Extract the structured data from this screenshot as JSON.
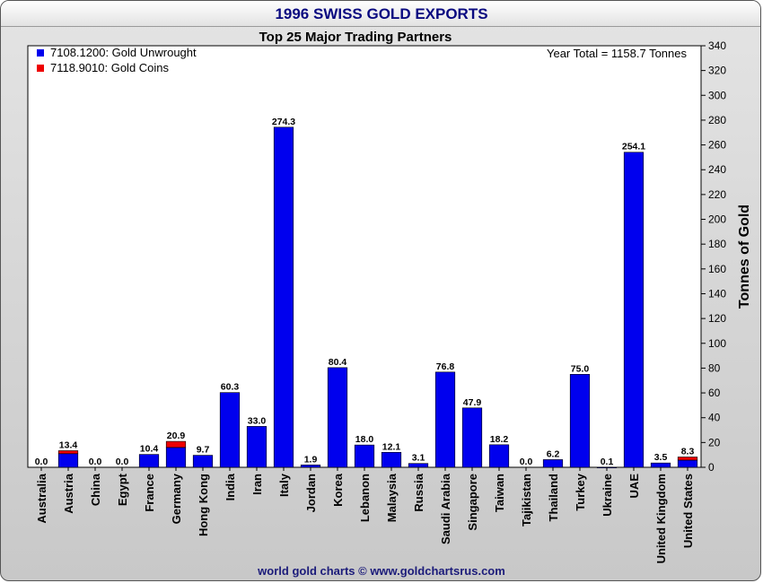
{
  "title": "1996 SWISS GOLD EXPORTS",
  "footer": "world gold charts © www.goldchartsrus.com",
  "chart_data": {
    "type": "bar",
    "stacked": true,
    "subtitle": "Top 25 Major Trading Partners",
    "annotation": "Year Total = 1158.7 Tonnes",
    "ylabel": "Tonnes of Gold",
    "xlabel": "",
    "ylim": [
      0,
      340
    ],
    "ytick_step": 20,
    "y_axis_side": "right",
    "grid": false,
    "legend_position": "top-left",
    "categories": [
      "Australia",
      "Austria",
      "China",
      "Egypt",
      "France",
      "Germany",
      "Hong Kong",
      "India",
      "Iran",
      "Italy",
      "Jordan",
      "Korea",
      "Lebanon",
      "Malaysia",
      "Russia",
      "Saudi Arabia",
      "Singapore",
      "Taiwan",
      "Tajikistan",
      "Thailand",
      "Turkey",
      "Ukraine",
      "UAE",
      "United Kingdom",
      "United States"
    ],
    "series": [
      {
        "name": "7108.1200: Gold Unwrought",
        "color": "#0000ee",
        "values": [
          0.0,
          11.0,
          0.0,
          0.0,
          10.4,
          16.0,
          9.7,
          60.3,
          33.0,
          274.3,
          1.9,
          80.4,
          18.0,
          12.1,
          3.1,
          76.8,
          47.9,
          18.2,
          0.0,
          6.2,
          75.0,
          0.1,
          254.1,
          3.5,
          5.8
        ]
      },
      {
        "name": "7118.9010: Gold Coins",
        "color": "#ee0000",
        "values": [
          0.0,
          2.4,
          0.0,
          0.0,
          0.0,
          4.9,
          0.0,
          0.0,
          0.0,
          0.0,
          0.0,
          0.0,
          0.0,
          0.0,
          0.0,
          0.0,
          0.0,
          0.0,
          0.0,
          0.0,
          0.0,
          0.0,
          0.0,
          0.0,
          2.5
        ]
      }
    ],
    "data_labels": [
      "0.0",
      "13.4",
      "0.0",
      "0.0",
      "10.4",
      "20.9",
      "9.7",
      "60.3",
      "33.0",
      "274.3",
      "1.9",
      "80.4",
      "18.0",
      "12.1",
      "3.1",
      "76.8",
      "47.9",
      "18.2",
      "0.0",
      "6.2",
      "75.0",
      "0.1",
      "254.1",
      "3.5",
      "8.3"
    ]
  }
}
